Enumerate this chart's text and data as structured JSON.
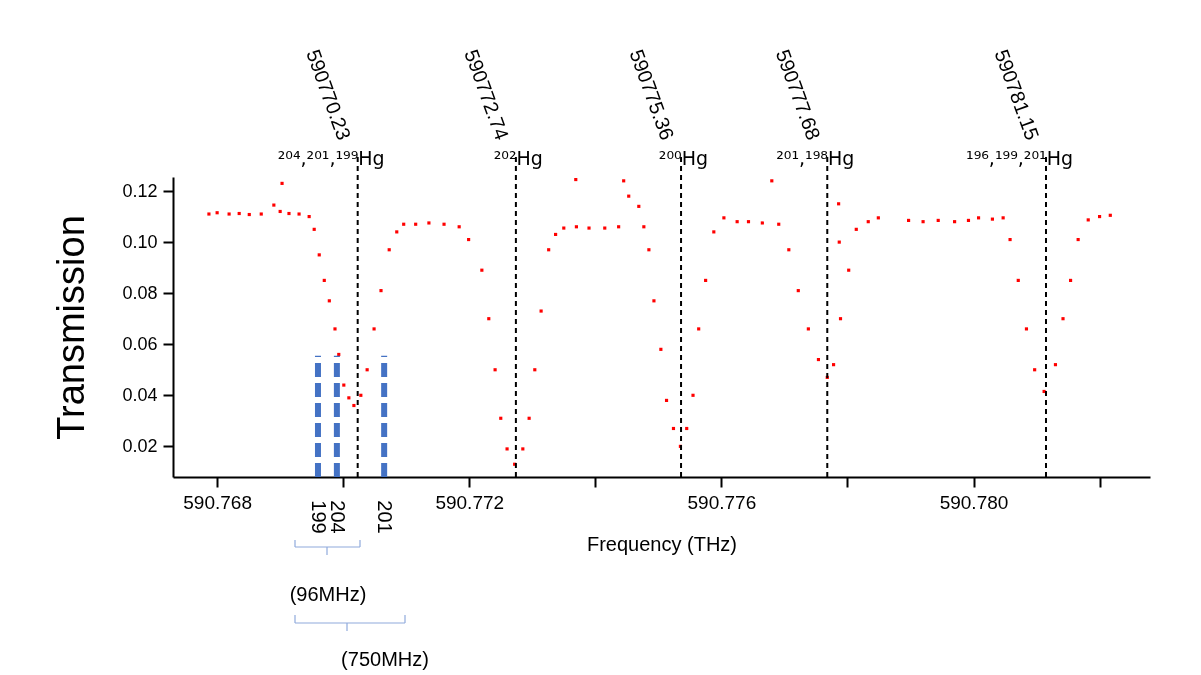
{
  "chart_data": {
    "type": "scatter",
    "xlabel": "Frequency (THz)",
    "ylabel": "Transmission",
    "xlim": [
      590.7673,
      590.7828
    ],
    "ylim": [
      0.008,
      0.1255
    ],
    "xticks": [
      590.768,
      {
        "value": 590.77,
        "label": null
      },
      590.772,
      {
        "value": 590.774,
        "label": null
      },
      590.776,
      {
        "value": 590.778,
        "label": null
      },
      {
        "value": 590.78,
        "label": "590.780"
      },
      {
        "value": 590.782,
        "label": null
      }
    ],
    "yticks": [
      0.02,
      0.04,
      0.06,
      0.08,
      {
        "value": 0.1,
        "label": "0.10"
      },
      0.12
    ],
    "grid": false,
    "series": [
      {
        "color": "#ff0000",
        "marker": "square",
        "x": [
          590.76787,
          590.768,
          590.76819,
          590.76835,
          590.76851,
          590.7687,
          590.7689,
          590.76903,
          590.769,
          590.76914,
          590.7693,
          590.76946,
          590.76954,
          590.76962,
          590.7697,
          590.76978,
          590.76987,
          590.76993,
          590.77001,
          590.77009,
          590.77017,
          590.77028,
          590.77038,
          590.77049,
          590.7706,
          590.77073,
          590.77085,
          590.77096,
          590.77115,
          590.77136,
          590.7716,
          590.77184,
          590.77199,
          590.7722,
          590.77231,
          590.77241,
          590.7725,
          590.7726,
          590.77272,
          590.77285,
          590.77295,
          590.77304,
          590.77314,
          590.77326,
          590.77337,
          590.7735,
          590.77369,
          590.7737,
          590.7739,
          590.77415,
          590.77437,
          590.77445,
          590.77453,
          590.77469,
          590.77477,
          590.77485,
          590.77493,
          590.77504,
          590.77513,
          590.77524,
          590.77535,
          590.77545,
          590.77555,
          590.77564,
          590.77575,
          590.77588,
          590.77604,
          590.77625,
          590.77643,
          590.77665,
          590.7768,
          590.77691,
          590.77707,
          590.77722,
          590.77738,
          590.77754,
          590.77768,
          590.77778,
          590.77786,
          590.77787,
          590.77789,
          590.77802,
          590.77814,
          590.77833,
          590.77849,
          590.77897,
          590.7792,
          590.77944,
          590.7797,
          590.77992,
          590.78008,
          590.7803,
          590.78047,
          590.78058,
          590.78071,
          590.78084,
          590.78097,
          590.78112,
          590.7813,
          590.78142,
          590.78154,
          590.78166,
          590.78182,
          590.782,
          590.78217
        ],
        "values": [
          0.111,
          0.1115,
          0.111,
          0.1112,
          0.1108,
          0.111,
          0.1145,
          0.123,
          0.112,
          0.1112,
          0.111,
          0.11,
          0.105,
          0.095,
          0.085,
          0.077,
          0.066,
          0.056,
          0.044,
          0.039,
          0.036,
          0.04,
          0.05,
          0.066,
          0.081,
          0.097,
          0.104,
          0.107,
          0.107,
          0.1075,
          0.107,
          0.106,
          0.101,
          0.089,
          0.07,
          0.05,
          0.031,
          0.019,
          0.013,
          0.019,
          0.031,
          0.05,
          0.073,
          0.097,
          0.103,
          0.1055,
          0.1245,
          0.106,
          0.1055,
          0.1055,
          0.106,
          0.124,
          0.118,
          0.114,
          0.106,
          0.097,
          0.077,
          0.058,
          0.038,
          0.027,
          0.02,
          0.027,
          0.04,
          0.066,
          0.085,
          0.104,
          0.1095,
          0.108,
          0.108,
          0.1075,
          0.124,
          0.107,
          0.097,
          0.081,
          0.066,
          0.054,
          0.047,
          0.052,
          0.115,
          0.1,
          0.07,
          0.089,
          0.105,
          0.108,
          0.1095,
          0.1085,
          0.108,
          0.1085,
          0.108,
          0.1085,
          0.1095,
          0.109,
          0.1095,
          0.101,
          0.085,
          0.066,
          0.05,
          0.0415,
          0.052,
          0.07,
          0.085,
          0.101,
          0.1087,
          0.11,
          0.1105
        ]
      },
      {
        "type": "line",
        "name": "199",
        "color": "#4472c4",
        "line_style": "dashed",
        "x": [
          590.7696,
          590.7696
        ],
        "values": [
          0.008,
          0.0555
        ]
      },
      {
        "type": "line",
        "name": "204",
        "color": "#4472c4",
        "line_style": "dashed",
        "x": [
          590.7699,
          590.7699
        ],
        "values": [
          0.008,
          0.0555
        ]
      },
      {
        "type": "line",
        "name": "201",
        "color": "#4472c4",
        "line_style": "dashed",
        "x": [
          590.77065,
          590.77065
        ],
        "values": [
          0.008,
          0.0555
        ]
      }
    ],
    "ref_lines": [
      {
        "axis": "x",
        "value": 590.77023,
        "label": "590770.23",
        "color": "#000000",
        "line_style": "dashed"
      },
      {
        "axis": "x",
        "value": 590.77274,
        "label": "590772.74",
        "color": "#000000",
        "line_style": "dashed"
      },
      {
        "axis": "x",
        "value": 590.77536,
        "label": "590775.36",
        "color": "#000000",
        "line_style": "dashed"
      },
      {
        "axis": "x",
        "value": 590.77768,
        "label": "590777.68",
        "color": "#000000",
        "line_style": "dashed"
      },
      {
        "axis": "x",
        "value": 590.78115,
        "label": "590781.15",
        "color": "#000000",
        "line_style": "dashed"
      }
    ],
    "annotations": [
      {
        "text": "²⁰⁴,²⁰¹,¹⁹⁹Hg",
        "x": 590.77023
      },
      {
        "text": "²⁰²Hg",
        "x": 590.77274
      },
      {
        "text": "²⁰⁰Hg",
        "x": 590.77536
      },
      {
        "text": "²⁰¹,¹⁹⁸Hg",
        "x": 590.77768
      },
      {
        "text": "¹⁹⁶,¹⁹⁹,²⁰¹Hg",
        "x": 590.78115
      },
      "(96MHz)",
      "(750MHz)"
    ]
  }
}
